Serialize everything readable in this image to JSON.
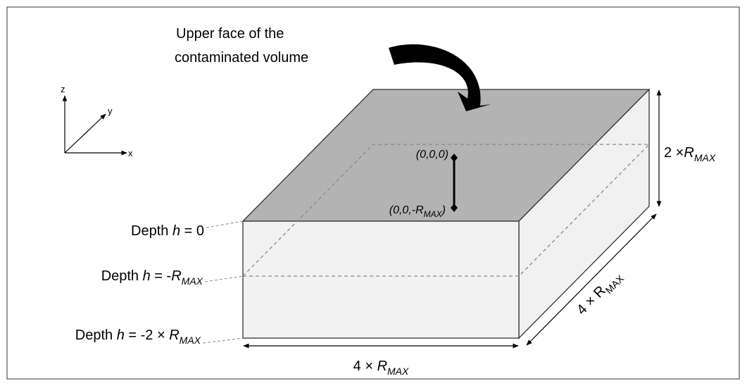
{
  "title": {
    "lines": [
      "Upper face of the",
      "contaminated  volume"
    ]
  },
  "axes": {
    "z": "z",
    "y": "y",
    "x": "x"
  },
  "points": {
    "origin": "(0,0,0)",
    "bottom": [
      "(0,0,-R",
      "MAX",
      ")"
    ]
  },
  "depth_labels": [
    [
      "Depth ",
      "h",
      " = 0"
    ],
    [
      "Depth ",
      "h",
      " = -",
      "R",
      "MAX"
    ],
    [
      "Depth ",
      "h",
      " = -2 × ",
      "R",
      "MAX"
    ]
  ],
  "dimensions": {
    "height": [
      "2 ×",
      "R",
      "MAX"
    ],
    "width": [
      "4 × ",
      "R",
      "MAX"
    ],
    "depth": [
      "4 × R",
      "MAX"
    ]
  }
}
